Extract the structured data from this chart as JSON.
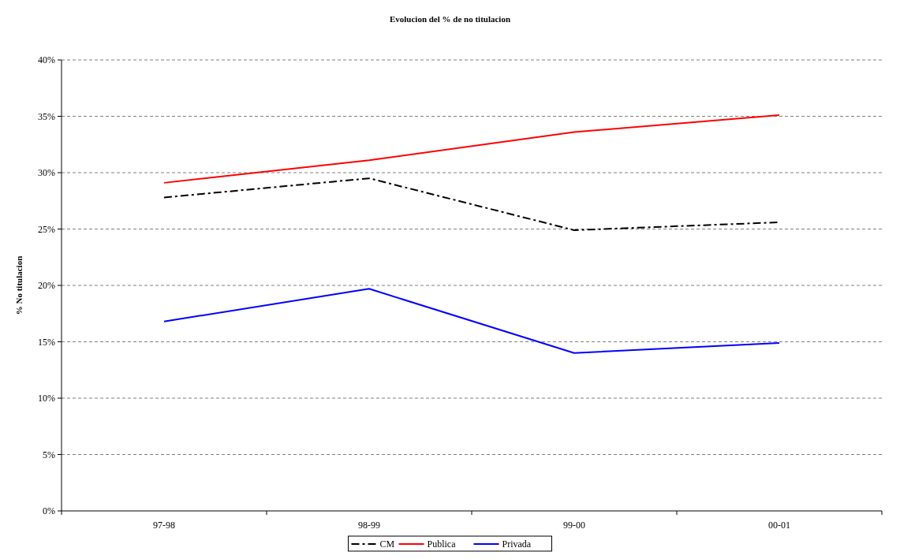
{
  "chart_data": {
    "type": "line",
    "title": "Evolucion del % de no titulacion",
    "ylabel": "% No titulacion",
    "categories": [
      "97-98",
      "98-99",
      "99-00",
      "00-01"
    ],
    "series": [
      {
        "name": "CM",
        "color": "#000000",
        "values": [
          27.8,
          29.5,
          24.9,
          25.6
        ],
        "line_style": "dashed"
      },
      {
        "name": "Publica",
        "color": "#ff0000",
        "values": [
          29.1,
          31.1,
          33.6,
          35.1
        ]
      },
      {
        "name": "Privada",
        "color": "#0000ff",
        "values": [
          16.8,
          19.7,
          14.0,
          14.9
        ]
      }
    ],
    "ylim": [
      0,
      40
    ],
    "yticks": [
      {
        "value": 0,
        "label": "0%"
      },
      {
        "value": 5,
        "label": "5%"
      },
      {
        "value": 10,
        "label": "10%"
      },
      {
        "value": 15,
        "label": "15%"
      },
      {
        "value": 20,
        "label": "20%"
      },
      {
        "value": 25,
        "label": "25%"
      },
      {
        "value": 30,
        "label": "30%"
      },
      {
        "value": 35,
        "label": "35%"
      },
      {
        "value": 40,
        "label": "40%"
      }
    ],
    "grid": "y",
    "legend": "bottom",
    "marker": "none",
    "line_style": "solid"
  }
}
